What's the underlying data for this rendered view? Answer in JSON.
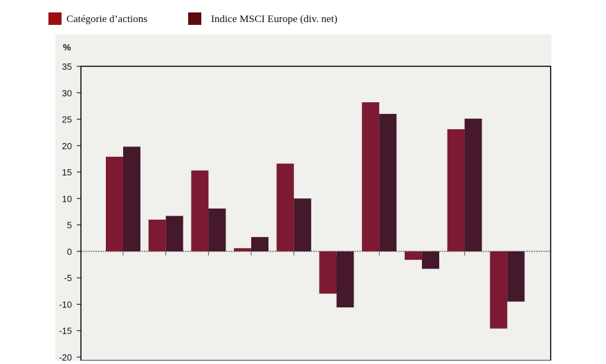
{
  "chart_data": {
    "type": "bar",
    "ylabel": "%",
    "ylim": [
      -20,
      35
    ],
    "yticks": [
      "35",
      "30",
      "25",
      "20",
      "15",
      "10",
      "5",
      "0",
      "-5",
      "-10",
      "-15",
      "-20"
    ],
    "grid": false,
    "legend_position": "top-left",
    "categories": [
      "",
      "",
      "",
      "",
      "",
      "",
      "",
      "",
      "",
      ""
    ],
    "series": [
      {
        "name": "Catégorie d’actions",
        "color": "#7d1a32",
        "legend_color": "#9b0f12",
        "values": [
          17.9,
          6.0,
          15.3,
          0.6,
          16.6,
          -8.0,
          28.2,
          -1.6,
          23.1,
          -14.6
        ]
      },
      {
        "name": "Indice MSCI Europe (div. net)",
        "color": "#45182c",
        "legend_color": "#5c0a0e",
        "values": [
          19.8,
          6.7,
          8.1,
          2.7,
          10.0,
          -10.6,
          26.0,
          -3.3,
          25.1,
          -9.5
        ]
      }
    ],
    "colors": {
      "plot_background": "#f0f0ec",
      "zero_line": "#888888"
    }
  }
}
